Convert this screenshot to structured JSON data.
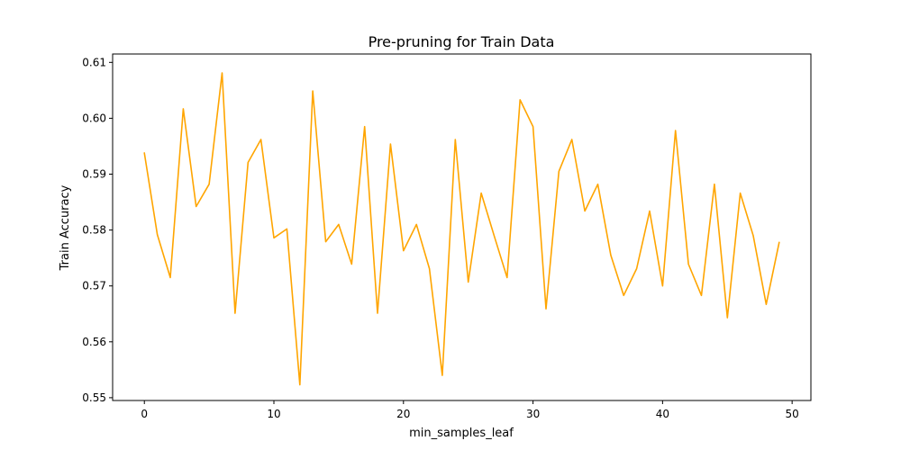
{
  "chart_data": {
    "type": "line",
    "title": "Pre-pruning for Train Data",
    "xlabel": "min_samples_leaf",
    "ylabel": "Train Accuracy",
    "xlim": [
      -2.45,
      51.45
    ],
    "ylim": [
      0.5495,
      0.6115
    ],
    "xticks": [
      0,
      10,
      20,
      30,
      40,
      50
    ],
    "yticks": [
      0.55,
      0.56,
      0.57,
      0.58,
      0.59,
      0.6,
      0.61
    ],
    "ytick_labels": [
      "0.55",
      "0.56",
      "0.57",
      "0.58",
      "0.59",
      "0.60",
      "0.61"
    ],
    "grid": false,
    "color": "#ffa500",
    "series": [
      {
        "x": [
          0,
          1,
          2,
          3,
          4,
          5,
          6,
          7,
          8,
          9,
          10,
          11,
          12,
          13,
          14,
          15,
          16,
          17,
          18,
          19,
          20,
          21,
          22,
          23,
          24,
          25,
          26,
          27,
          28,
          29,
          30,
          31,
          32,
          33,
          34,
          35,
          36,
          37,
          38,
          39,
          40,
          41,
          42,
          43,
          44,
          45,
          46,
          47,
          48,
          49
        ],
        "values": [
          0.5938,
          0.5792,
          0.5715,
          0.6017,
          0.5842,
          0.5882,
          0.6081,
          0.5651,
          0.5921,
          0.5962,
          0.5786,
          0.5802,
          0.5523,
          0.6049,
          0.5779,
          0.581,
          0.5739,
          0.5985,
          0.5651,
          0.5954,
          0.5763,
          0.581,
          0.5731,
          0.554,
          0.5962,
          0.5707,
          0.5866,
          0.579,
          0.5715,
          0.6033,
          0.5985,
          0.5659,
          0.5905,
          0.5962,
          0.5834,
          0.5882,
          0.5755,
          0.5683,
          0.5731,
          0.5834,
          0.57,
          0.5978,
          0.5739,
          0.5683,
          0.5882,
          0.5643,
          0.5866,
          0.579,
          0.5667,
          0.5778
        ]
      }
    ]
  }
}
